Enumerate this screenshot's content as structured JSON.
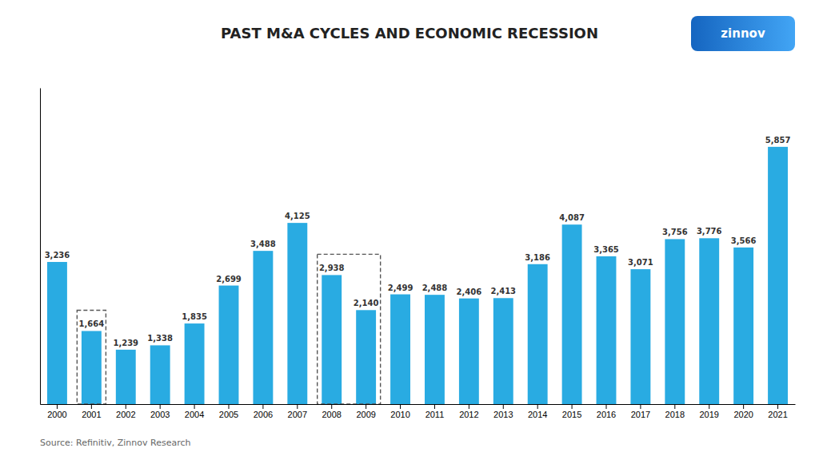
{
  "chart_data": {
    "type": "bar",
    "title": "PAST M&A CYCLES AND ECONOMIC RECESSION",
    "source": "Source: Refinitiv, Zinnov Research",
    "annotations": [
      "zinnov"
    ],
    "categories": [
      "2000",
      "2001",
      "2002",
      "2003",
      "2004",
      "2005",
      "2006",
      "2007",
      "2008",
      "2009",
      "2010",
      "2011",
      "2012",
      "2013",
      "2014",
      "2015",
      "2016",
      "2017",
      "2018",
      "2019",
      "2020",
      "2021"
    ],
    "values": [
      3236,
      1664,
      1239,
      1338,
      1835,
      2699,
      3488,
      4125,
      2938,
      2140,
      2499,
      2488,
      2406,
      2413,
      3186,
      4087,
      3365,
      3071,
      3756,
      3776,
      3566,
      5857
    ],
    "value_labels": [
      "3,236",
      "1,664",
      "1,239",
      "1,338",
      "1,835",
      "2,699",
      "3,488",
      "4,125",
      "2,938",
      "2,140",
      "2,499",
      "2,488",
      "2,406",
      "2,413",
      "3,186",
      "4,087",
      "3,365",
      "3,071",
      "3,756",
      "3,776",
      "3,566",
      "5,857"
    ],
    "data_labels": true,
    "color": "#29ABE2",
    "ylim": [
      0,
      7200
    ],
    "tick_labels": "x",
    "grid": false,
    "highlights": [
      [
        "2001",
        "2001"
      ],
      [
        "2008",
        "2009"
      ]
    ]
  }
}
